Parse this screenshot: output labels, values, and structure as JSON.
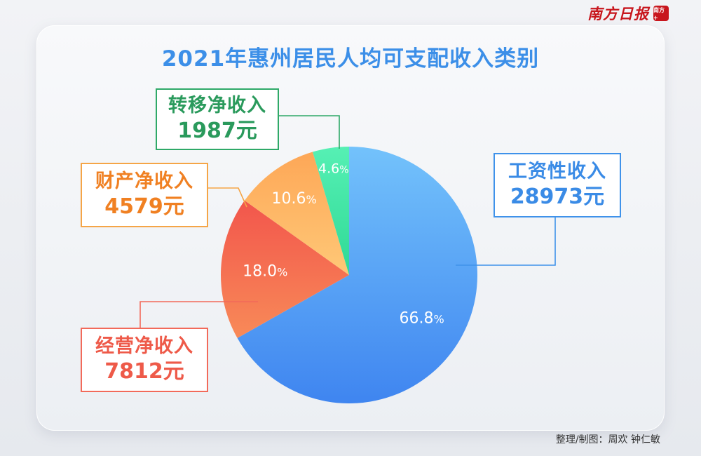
{
  "masthead": {
    "name": "南方日报",
    "badge": "南方+"
  },
  "chart_data": {
    "type": "pie",
    "title": "2021年惠州居民人均可支配收入类别",
    "slices": [
      {
        "name": "工资性收入",
        "value": 28973,
        "percent": 66.8,
        "value_label": "28973元",
        "percent_label": "66.8",
        "color": "#4a95f3"
      },
      {
        "name": "经营净收入",
        "value": 7812,
        "percent": 18.0,
        "value_label": "7812元",
        "percent_label": "18.0",
        "color": "#f4684f"
      },
      {
        "name": "财产净收入",
        "value": 4579,
        "percent": 10.6,
        "value_label": "4579元",
        "percent_label": "10.6",
        "color": "#fcb663"
      },
      {
        "name": "转移净收入",
        "value": 1987,
        "percent": 4.6,
        "value_label": "1987元",
        "percent_label": "4.6",
        "color": "#3ee6a4"
      }
    ],
    "percent_unit": "%"
  },
  "credit": "整理/制图：周欢 钟仁敏"
}
